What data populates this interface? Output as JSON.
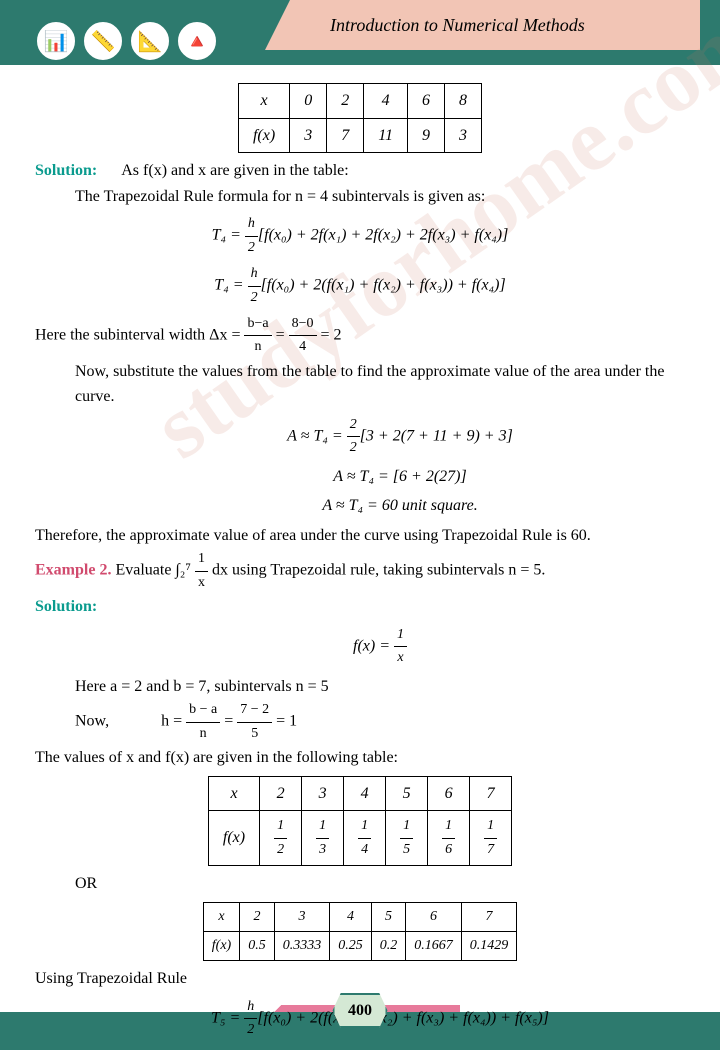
{
  "header": {
    "title": "Introduction to Numerical Methods"
  },
  "table1": {
    "h1": "x",
    "h2": "f(x)",
    "r1": [
      "0",
      "2",
      "4",
      "6",
      "8"
    ],
    "r2": [
      "3",
      "7",
      "11",
      "9",
      "3"
    ]
  },
  "txt": {
    "sol": "Solution:",
    "p1": "As f(x) and x are given in the table:",
    "p2": "The Trapezoidal Rule formula for n = 4 subintervals is given as:",
    "eq1": "T₄ = ",
    "eq1b": "[f(x₀) + 2f(x₁) + 2f(x₂) + 2f(x₃) + f(x₄)]",
    "eq2b": "[f(x₀) + 2(f(x₁) + f(x₂) + f(x₃)) + f(x₄)]",
    "p3a": "Here the subinterval width Δx = ",
    "p3b": " = 2",
    "p4": "Now, substitute the values from the table to find the approximate value of the area under the curve.",
    "eq3": "A ≈ T₄ = ",
    "eq3b": "[3 + 2(7 + 11 + 9) + 3]",
    "eq4": "A ≈ T₄ = [6 + 2(27)]",
    "eq5": "A ≈ T₄ = 60 unit square.",
    "p5": "Therefore, the approximate value of area under the curve using Trapezoidal Rule is 60.",
    "ex2": "Example 2.",
    "ex2t": " Evaluate ∫₂⁷ ",
    "ex2t2": " dx using Trapezoidal rule, taking subintervals n = 5.",
    "eq6": "f(x) = ",
    "p6": "Here a = 2 and b = 7, subintervals n = 5",
    "p7a": "Now,",
    "p7b": "h = ",
    "p7c": " = 1",
    "p8": "The values of x and f(x) are given in the following table:",
    "or": "OR",
    "p9": "Using Trapezoidal Rule",
    "eq7": "T₅ = ",
    "eq7b": "[f(x₀) + 2(f(x₁) + f(x₂) + f(x₃) + f(x₄)) + f(x₅)]"
  },
  "table2": {
    "h1": "x",
    "h2": "f(x)",
    "r1": [
      "2",
      "3",
      "4",
      "5",
      "6",
      "7"
    ]
  },
  "table3": {
    "h1": "x",
    "h2": "f(x)",
    "r1": [
      "2",
      "3",
      "4",
      "5",
      "6",
      "7"
    ],
    "r2": [
      "0.5",
      "0.3333",
      "0.25",
      "0.2",
      "0.1667",
      "0.1429"
    ]
  },
  "page": "400",
  "watermark": "studyforhome.com"
}
